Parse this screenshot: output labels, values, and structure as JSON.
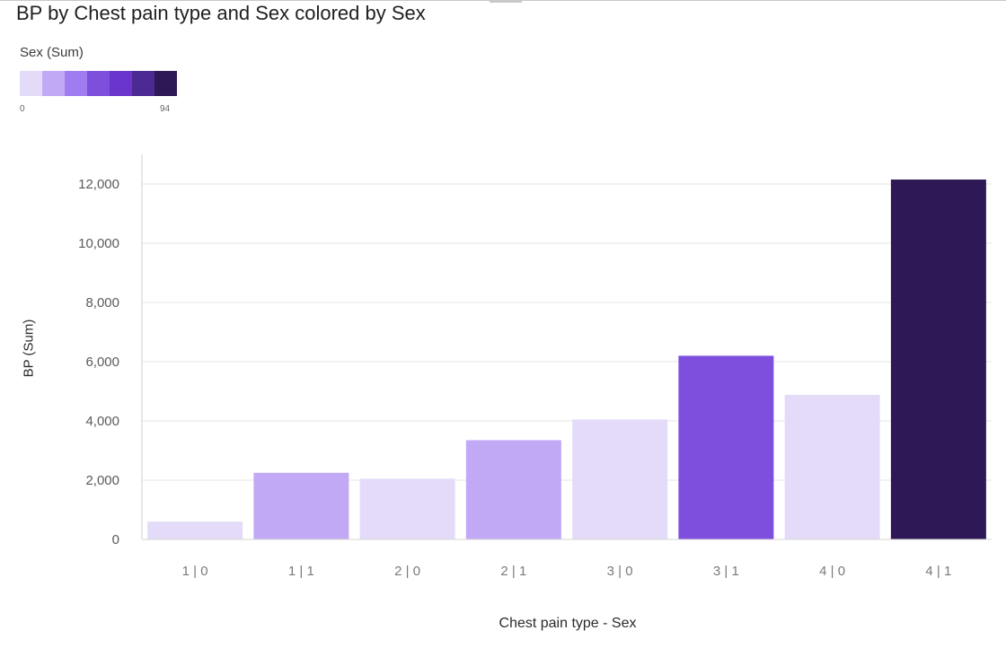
{
  "chart_data": {
    "type": "bar",
    "title": "BP by Chest pain type and Sex colored by Sex",
    "xlabel": "Chest pain type - Sex",
    "ylabel": "BP (Sum)",
    "ylim": [
      0,
      13000
    ],
    "yticks": [
      0,
      2000,
      4000,
      6000,
      8000,
      10000,
      12000
    ],
    "ytick_labels": [
      "0",
      "2,000",
      "4,000",
      "6,000",
      "8,000",
      "10,000",
      "12,000"
    ],
    "categories": [
      "1 | 0",
      "1 | 1",
      "2 | 0",
      "2 | 1",
      "3 | 0",
      "3 | 1",
      "4 | 0",
      "4 | 1"
    ],
    "values": [
      600,
      2250,
      2050,
      3350,
      4050,
      6200,
      4880,
      12150
    ],
    "colors": [
      "#e3dbf8",
      "#c2a9f5",
      "#e3dbf8",
      "#c2a9f5",
      "#e3dbf8",
      "#7d4fdc",
      "#e3dbf8",
      "#2e1855"
    ],
    "grid": true,
    "legend": {
      "title": "Sex (Sum)",
      "min_label": "0",
      "max_label": "94",
      "colors": [
        "#e3dbf8",
        "#c2a9f5",
        "#a07cf1",
        "#7d4fdc",
        "#6a35cc",
        "#4c2a94",
        "#2e1855"
      ],
      "placement": "top-left"
    }
  }
}
